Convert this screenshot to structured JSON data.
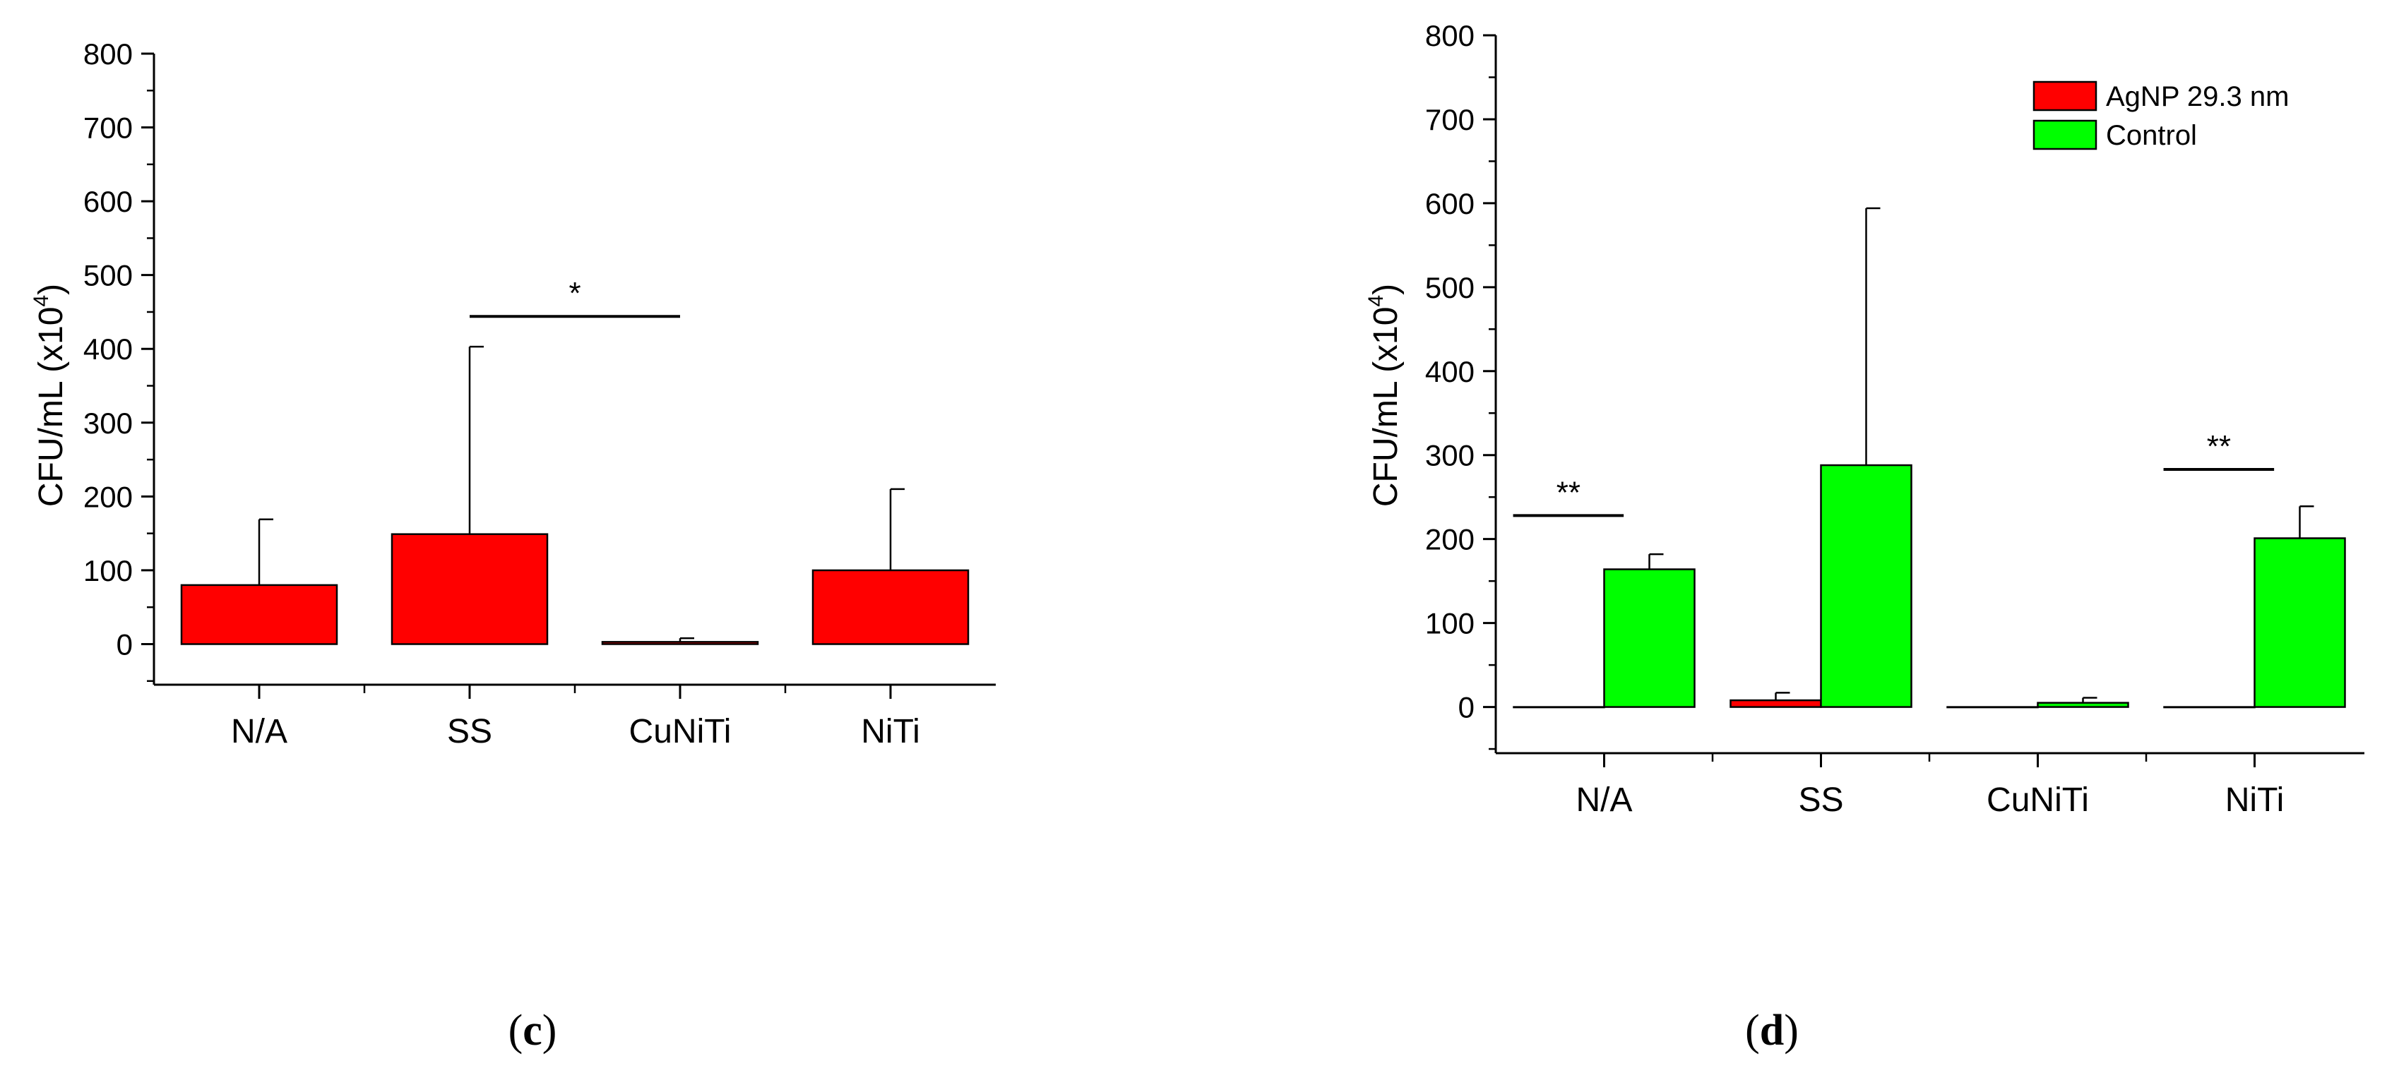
{
  "chart_data": [
    {
      "type": "bar",
      "panel": "c",
      "categories": [
        "N/A",
        "SS",
        "CuNiTi",
        "NiTi"
      ],
      "series": [
        {
          "values": [
            80,
            149,
            3,
            100
          ],
          "errors": [
            89,
            254,
            5,
            110
          ],
          "color": "#ff0000"
        }
      ],
      "ylabel": "CFU/mL (x10",
      "ylabel_sup": "4",
      "ylabel_close": ")",
      "ylim": [
        -55,
        800
      ],
      "yticks": [
        0,
        100,
        200,
        300,
        400,
        500,
        600,
        700,
        800
      ],
      "yticklabels": [
        "0",
        "100",
        "200",
        "300",
        "400",
        "500",
        "600",
        "700",
        "800"
      ],
      "annotations": [
        {
          "text": "*",
          "from_category": 1,
          "to_category": 2,
          "y": 444
        }
      ],
      "legend": null
    },
    {
      "type": "bar",
      "panel": "d",
      "categories": [
        "N/A",
        "SS",
        "CuNiTi",
        "NiTi"
      ],
      "series": [
        {
          "name": "AgNP 29.3 nm",
          "values": [
            0,
            8,
            0,
            0
          ],
          "errors": [
            0,
            9,
            0,
            0
          ],
          "color": "#ff0000"
        },
        {
          "name": "Control",
          "values": [
            164,
            288,
            5,
            201
          ],
          "errors": [
            18,
            306,
            6,
            38
          ],
          "color": "#00ff00"
        }
      ],
      "ylabel": "CFU/mL (x10",
      "ylabel_sup": "4",
      "ylabel_close": ")",
      "ylim": [
        -55,
        800
      ],
      "yticks": [
        0,
        100,
        200,
        300,
        400,
        500,
        600,
        700,
        800
      ],
      "yticklabels": [
        "0",
        "100",
        "200",
        "300",
        "400",
        "500",
        "600",
        "700",
        "800"
      ],
      "annotations": [
        {
          "text": "**",
          "category": 0,
          "y": 228
        },
        {
          "text": "**",
          "category": 3,
          "y": 283
        }
      ],
      "legend": {
        "position": "top-right"
      }
    }
  ],
  "panel_labels": {
    "c": {
      "open": "(",
      "letter": "c",
      "close": ")"
    },
    "d": {
      "open": "(",
      "letter": "d",
      "close": ")"
    }
  }
}
